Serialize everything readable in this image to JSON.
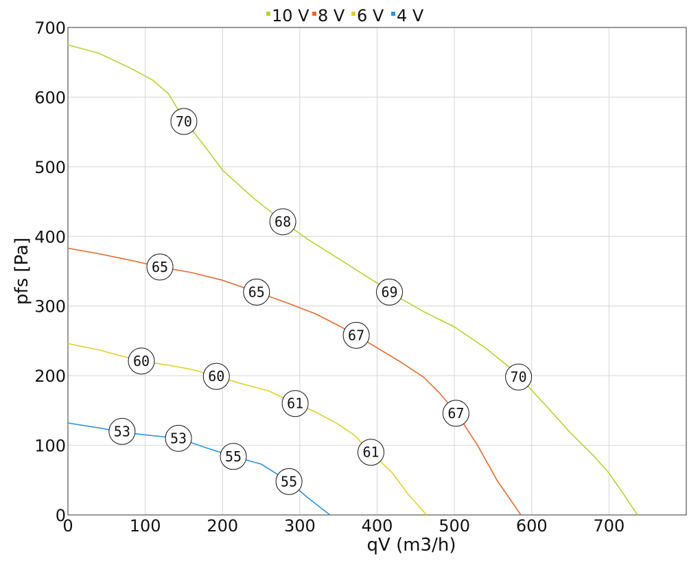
{
  "chart_data": {
    "type": "line",
    "title": "",
    "xlabel": "qV (m3/h)",
    "ylabel": "pfs [Pa]",
    "xlim": [
      0,
      800
    ],
    "ylim": [
      0,
      700
    ],
    "x_ticks": [
      0,
      100,
      200,
      300,
      400,
      500,
      600,
      700
    ],
    "y_ticks": [
      0,
      100,
      200,
      300,
      400,
      500,
      600,
      700
    ],
    "grid": true,
    "legend_position": "top-center",
    "series": [
      {
        "name": "10 V",
        "color": "#b5d334",
        "points": [
          [
            0,
            675
          ],
          [
            40,
            663
          ],
          [
            80,
            642
          ],
          [
            110,
            624
          ],
          [
            130,
            605
          ],
          [
            150,
            568
          ],
          [
            180,
            525
          ],
          [
            200,
            495
          ],
          [
            240,
            455
          ],
          [
            280,
            420
          ],
          [
            310,
            396
          ],
          [
            350,
            368
          ],
          [
            400,
            333
          ],
          [
            416,
            320
          ],
          [
            460,
            292
          ],
          [
            500,
            270
          ],
          [
            540,
            240
          ],
          [
            570,
            213
          ],
          [
            585,
            197
          ],
          [
            620,
            155
          ],
          [
            650,
            118
          ],
          [
            680,
            85
          ],
          [
            700,
            60
          ],
          [
            720,
            28
          ],
          [
            737,
            0
          ]
        ],
        "markers": [
          {
            "x": 150,
            "y": 565,
            "label": "70"
          },
          {
            "x": 278,
            "y": 421,
            "label": "68"
          },
          {
            "x": 416,
            "y": 320,
            "label": "69"
          },
          {
            "x": 583,
            "y": 198,
            "label": "70"
          }
        ]
      },
      {
        "name": "8 V",
        "color": "#e6692d",
        "points": [
          [
            0,
            383
          ],
          [
            40,
            375
          ],
          [
            80,
            366
          ],
          [
            120,
            356
          ],
          [
            160,
            348
          ],
          [
            200,
            337
          ],
          [
            244,
            320
          ],
          [
            280,
            306
          ],
          [
            320,
            289
          ],
          [
            350,
            272
          ],
          [
            374,
            257
          ],
          [
            400,
            240
          ],
          [
            430,
            220
          ],
          [
            460,
            198
          ],
          [
            480,
            176
          ],
          [
            503,
            146
          ],
          [
            530,
            100
          ],
          [
            555,
            50
          ],
          [
            586,
            0
          ]
        ],
        "markers": [
          {
            "x": 119,
            "y": 356,
            "label": "65"
          },
          {
            "x": 244,
            "y": 320,
            "label": "65"
          },
          {
            "x": 373,
            "y": 258,
            "label": "67"
          },
          {
            "x": 502,
            "y": 146,
            "label": "67"
          }
        ]
      },
      {
        "name": "6 V",
        "color": "#e3cf2a",
        "points": [
          [
            0,
            246
          ],
          [
            40,
            237
          ],
          [
            70,
            228
          ],
          [
            95,
            221
          ],
          [
            130,
            215
          ],
          [
            160,
            209
          ],
          [
            192,
            199
          ],
          [
            220,
            190
          ],
          [
            260,
            178
          ],
          [
            295,
            160
          ],
          [
            320,
            148
          ],
          [
            350,
            130
          ],
          [
            370,
            115
          ],
          [
            392,
            90
          ],
          [
            420,
            60
          ],
          [
            440,
            30
          ],
          [
            464,
            0
          ]
        ],
        "markers": [
          {
            "x": 95,
            "y": 221,
            "label": "60"
          },
          {
            "x": 192,
            "y": 199,
            "label": "60"
          },
          {
            "x": 294,
            "y": 160,
            "label": "61"
          },
          {
            "x": 392,
            "y": 90,
            "label": "61"
          }
        ]
      },
      {
        "name": "4 V",
        "color": "#2a94dc",
        "points": [
          [
            0,
            132
          ],
          [
            40,
            125
          ],
          [
            70,
            119
          ],
          [
            100,
            115
          ],
          [
            143,
            110
          ],
          [
            180,
            96
          ],
          [
            214,
            84
          ],
          [
            250,
            73
          ],
          [
            286,
            48
          ],
          [
            310,
            25
          ],
          [
            339,
            0
          ]
        ],
        "markers": [
          {
            "x": 70,
            "y": 120,
            "label": "53"
          },
          {
            "x": 143,
            "y": 110,
            "label": "53"
          },
          {
            "x": 214,
            "y": 84,
            "label": "55"
          },
          {
            "x": 286,
            "y": 48,
            "label": "55"
          }
        ]
      }
    ]
  }
}
